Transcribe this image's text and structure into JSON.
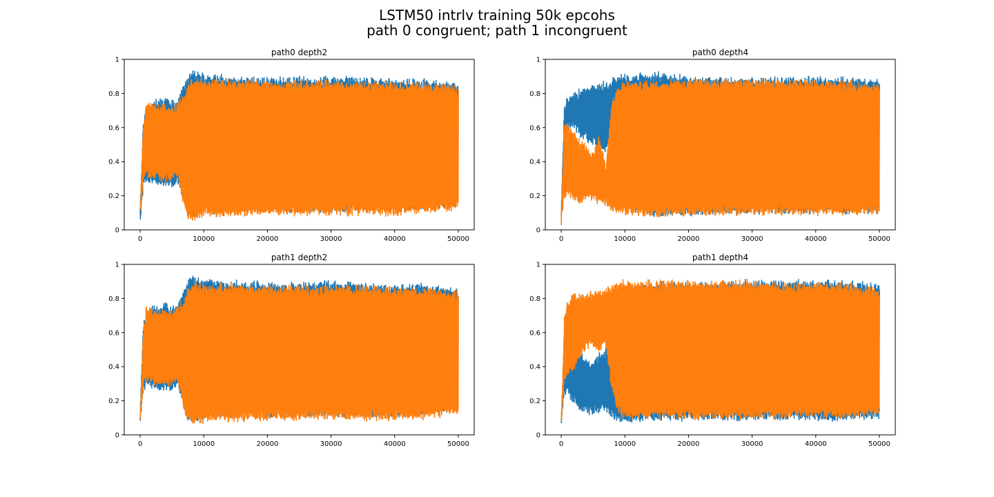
{
  "figure": {
    "suptitle_line1": "LSTM50 intrlv training 50k epcohs",
    "suptitle_line2": "path 0 congruent; path 1 incongruent"
  },
  "chart_data": [
    {
      "type": "line",
      "title": "path0 depth2",
      "xlabel": "",
      "ylabel": "",
      "xlim": [
        -2500,
        52500
      ],
      "ylim": [
        0,
        1
      ],
      "xticks": [
        0,
        10000,
        20000,
        30000,
        40000,
        50000
      ],
      "yticks": [
        0.0,
        0.2,
        0.4,
        0.6,
        0.8,
        1.0
      ],
      "grid": false,
      "x": [
        0,
        500,
        1000,
        2000,
        3000,
        4000,
        5000,
        6000,
        7000,
        7500,
        8000,
        10000,
        15000,
        20000,
        25000,
        30000,
        35000,
        40000,
        45000,
        50000
      ],
      "series": [
        {
          "color": "#1f77b4",
          "upper": [
            0.15,
            0.65,
            0.72,
            0.75,
            0.76,
            0.78,
            0.75,
            0.77,
            0.86,
            0.9,
            0.93,
            0.91,
            0.9,
            0.89,
            0.89,
            0.9,
            0.89,
            0.88,
            0.88,
            0.85
          ],
          "lower": [
            0.05,
            0.25,
            0.28,
            0.27,
            0.25,
            0.26,
            0.26,
            0.27,
            0.15,
            0.08,
            0.07,
            0.1,
            0.11,
            0.11,
            0.11,
            0.11,
            0.11,
            0.11,
            0.12,
            0.15
          ]
        },
        {
          "color": "#ff7f0e",
          "upper": [
            0.12,
            0.62,
            0.76,
            0.74,
            0.73,
            0.74,
            0.72,
            0.75,
            0.8,
            0.86,
            0.89,
            0.88,
            0.88,
            0.87,
            0.87,
            0.87,
            0.87,
            0.86,
            0.86,
            0.84
          ],
          "lower": [
            0.05,
            0.28,
            0.32,
            0.3,
            0.29,
            0.29,
            0.29,
            0.3,
            0.12,
            0.07,
            0.06,
            0.08,
            0.08,
            0.09,
            0.09,
            0.09,
            0.09,
            0.09,
            0.1,
            0.12
          ]
        }
      ]
    },
    {
      "type": "line",
      "title": "path0 depth4",
      "xlabel": "",
      "ylabel": "",
      "xlim": [
        -2500,
        52500
      ],
      "ylim": [
        0,
        1
      ],
      "xticks": [
        0,
        10000,
        20000,
        30000,
        40000,
        50000
      ],
      "yticks": [
        0.0,
        0.2,
        0.4,
        0.6,
        0.8,
        1.0
      ],
      "grid": false,
      "x": [
        0,
        500,
        1000,
        2000,
        3000,
        4000,
        5000,
        6000,
        7000,
        7500,
        8000,
        9000,
        10000,
        15000,
        20000,
        25000,
        30000,
        35000,
        40000,
        45000,
        50000
      ],
      "series": [
        {
          "color": "#1f77b4",
          "upper": [
            0.1,
            0.75,
            0.78,
            0.8,
            0.82,
            0.83,
            0.85,
            0.86,
            0.87,
            0.88,
            0.88,
            0.9,
            0.91,
            0.92,
            0.9,
            0.89,
            0.89,
            0.89,
            0.89,
            0.89,
            0.88
          ],
          "lower": [
            0.05,
            0.55,
            0.6,
            0.6,
            0.55,
            0.52,
            0.5,
            0.45,
            0.45,
            0.5,
            0.55,
            0.28,
            0.12,
            0.08,
            0.09,
            0.1,
            0.1,
            0.1,
            0.1,
            0.1,
            0.1
          ]
        },
        {
          "color": "#ff7f0e",
          "upper": [
            0.08,
            0.65,
            0.62,
            0.58,
            0.52,
            0.5,
            0.45,
            0.55,
            0.38,
            0.58,
            0.75,
            0.85,
            0.86,
            0.87,
            0.88,
            0.88,
            0.88,
            0.88,
            0.87,
            0.87,
            0.85
          ],
          "lower": [
            0.05,
            0.18,
            0.2,
            0.18,
            0.15,
            0.18,
            0.17,
            0.16,
            0.15,
            0.12,
            0.1,
            0.09,
            0.09,
            0.08,
            0.09,
            0.09,
            0.09,
            0.09,
            0.09,
            0.09,
            0.1
          ]
        }
      ]
    },
    {
      "type": "line",
      "title": "path1 depth2",
      "xlabel": "",
      "ylabel": "",
      "xlim": [
        -2500,
        52500
      ],
      "ylim": [
        0,
        1
      ],
      "xticks": [
        0,
        10000,
        20000,
        30000,
        40000,
        50000
      ],
      "yticks": [
        0.0,
        0.2,
        0.4,
        0.6,
        0.8,
        1.0
      ],
      "grid": false,
      "x": [
        0,
        500,
        1000,
        2000,
        3000,
        4000,
        5000,
        6000,
        7000,
        7500,
        8000,
        10000,
        15000,
        20000,
        25000,
        30000,
        35000,
        40000,
        45000,
        50000
      ],
      "series": [
        {
          "color": "#1f77b4",
          "upper": [
            0.15,
            0.65,
            0.72,
            0.75,
            0.76,
            0.78,
            0.75,
            0.77,
            0.86,
            0.9,
            0.93,
            0.91,
            0.9,
            0.89,
            0.89,
            0.9,
            0.89,
            0.88,
            0.88,
            0.85
          ],
          "lower": [
            0.05,
            0.25,
            0.28,
            0.27,
            0.25,
            0.26,
            0.26,
            0.27,
            0.15,
            0.08,
            0.07,
            0.1,
            0.11,
            0.11,
            0.11,
            0.11,
            0.11,
            0.11,
            0.12,
            0.15
          ]
        },
        {
          "color": "#ff7f0e",
          "upper": [
            0.12,
            0.62,
            0.76,
            0.74,
            0.73,
            0.74,
            0.72,
            0.75,
            0.8,
            0.86,
            0.89,
            0.88,
            0.88,
            0.87,
            0.87,
            0.87,
            0.87,
            0.86,
            0.86,
            0.84
          ],
          "lower": [
            0.05,
            0.28,
            0.32,
            0.3,
            0.29,
            0.29,
            0.29,
            0.3,
            0.12,
            0.07,
            0.06,
            0.08,
            0.08,
            0.09,
            0.09,
            0.09,
            0.09,
            0.09,
            0.1,
            0.12
          ]
        }
      ]
    },
    {
      "type": "line",
      "title": "path1 depth4",
      "xlabel": "",
      "ylabel": "",
      "xlim": [
        -2500,
        52500
      ],
      "ylim": [
        0,
        1
      ],
      "xticks": [
        0,
        10000,
        20000,
        30000,
        40000,
        50000
      ],
      "yticks": [
        0.0,
        0.2,
        0.4,
        0.6,
        0.8,
        1.0
      ],
      "grid": false,
      "x": [
        0,
        500,
        1000,
        2000,
        3000,
        4000,
        5000,
        6000,
        7000,
        8000,
        9000,
        10000,
        15000,
        20000,
        25000,
        30000,
        35000,
        40000,
        45000,
        50000
      ],
      "series": [
        {
          "color": "#1f77b4",
          "upper": [
            0.1,
            0.62,
            0.7,
            0.72,
            0.5,
            0.45,
            0.42,
            0.48,
            0.5,
            0.7,
            0.85,
            0.87,
            0.89,
            0.89,
            0.9,
            0.9,
            0.9,
            0.9,
            0.9,
            0.88
          ],
          "lower": [
            0.05,
            0.25,
            0.22,
            0.18,
            0.15,
            0.13,
            0.12,
            0.14,
            0.15,
            0.1,
            0.08,
            0.08,
            0.09,
            0.09,
            0.09,
            0.09,
            0.09,
            0.09,
            0.09,
            0.1
          ]
        },
        {
          "color": "#ff7f0e",
          "upper": [
            0.08,
            0.68,
            0.78,
            0.84,
            0.82,
            0.83,
            0.84,
            0.85,
            0.86,
            0.88,
            0.9,
            0.9,
            0.9,
            0.9,
            0.9,
            0.9,
            0.89,
            0.89,
            0.89,
            0.86
          ],
          "lower": [
            0.05,
            0.3,
            0.35,
            0.38,
            0.45,
            0.52,
            0.5,
            0.48,
            0.52,
            0.25,
            0.12,
            0.1,
            0.1,
            0.1,
            0.1,
            0.1,
            0.1,
            0.1,
            0.1,
            0.12
          ]
        }
      ]
    }
  ]
}
